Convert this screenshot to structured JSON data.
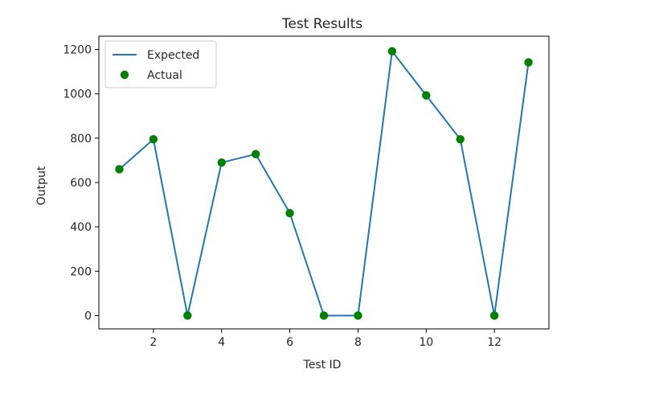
{
  "chart_data": {
    "type": "line",
    "title": "Test Results",
    "xlabel": "Test ID",
    "ylabel": "Output",
    "xlim": [
      0.4,
      13.6
    ],
    "ylim": [
      -60,
      1260
    ],
    "xticks": [
      2,
      4,
      6,
      8,
      10,
      12
    ],
    "yticks": [
      0,
      200,
      400,
      600,
      800,
      1000,
      1200
    ],
    "grid": false,
    "legend_position": "top-left",
    "x": [
      1,
      2,
      3,
      4,
      5,
      6,
      7,
      8,
      9,
      10,
      11,
      12,
      13
    ],
    "series": [
      {
        "name": "Expected",
        "kind": "line",
        "color": "#1f77b4",
        "values": [
          660,
          795,
          0,
          690,
          728,
          462,
          0,
          0,
          1192,
          993,
          795,
          0,
          1142
        ]
      },
      {
        "name": "Actual",
        "kind": "scatter",
        "color": "#008000",
        "values": [
          660,
          795,
          0,
          690,
          728,
          462,
          0,
          0,
          1192,
          993,
          795,
          0,
          1142
        ]
      }
    ]
  }
}
